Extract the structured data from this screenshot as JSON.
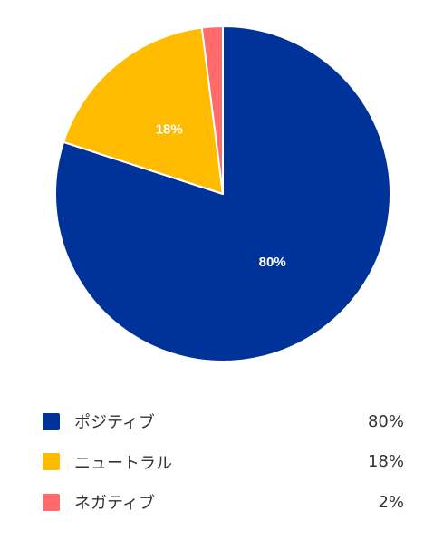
{
  "chart_data": {
    "type": "pie",
    "categories": [
      "ポジティブ",
      "ニュートラル",
      "ネガティブ"
    ],
    "values": [
      80,
      18,
      2
    ],
    "value_labels": [
      "80%",
      "18%",
      "2%"
    ],
    "slice_labels": [
      "80%",
      "18%",
      ""
    ],
    "colors": [
      "#003399",
      "#FFBB00",
      "#FF6B6B"
    ],
    "start": "top",
    "direction": "clockwise",
    "legend": "bottom"
  }
}
